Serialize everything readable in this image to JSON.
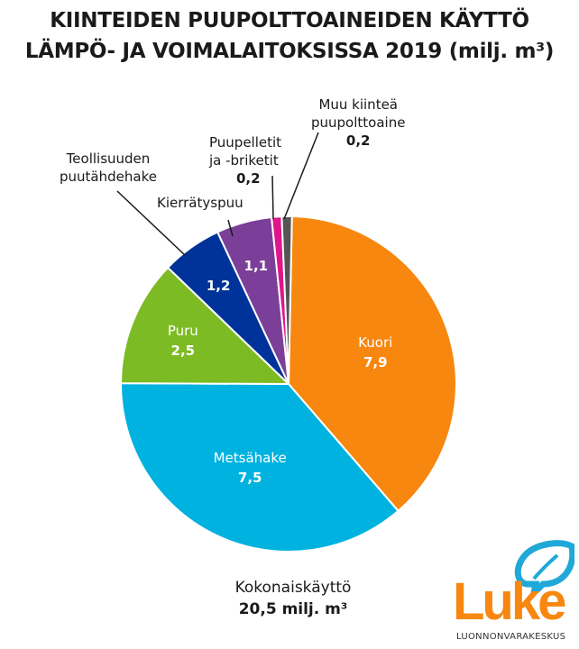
{
  "chart_data": {
    "type": "pie",
    "title_line1": "KIINTEIDEN PUUPOLTTOAINEIDEN KÄYTTÖ",
    "title_line2": "LÄMPÖ- JA VOIMALAITOKSISSA 2019 (milj. m³)",
    "slices": [
      {
        "label": "Kuori",
        "value": 7.9,
        "value_text": "7,9",
        "color": "#f7870f"
      },
      {
        "label": "Metsähake",
        "value": 7.5,
        "value_text": "7,5",
        "color": "#00b2e0"
      },
      {
        "label": "Puru",
        "value": 2.5,
        "value_text": "2,5",
        "color": "#7dbb24"
      },
      {
        "label": "Teollisuuden puutähdehake",
        "value": 1.2,
        "value_text": "1,2",
        "color": "#003399"
      },
      {
        "label": "Kierrätyspuu",
        "value": 1.1,
        "value_text": "1,1",
        "color": "#7b3f99"
      },
      {
        "label_line1": "Puupelletit",
        "label_line2": "ja -briketit",
        "value": 0.2,
        "value_text": "0,2",
        "color": "#e0158a"
      },
      {
        "label_line1": "Muu kiinteä",
        "label_line2": "puupolttoaine",
        "value": 0.2,
        "value_text": "0,2",
        "color": "#555555"
      }
    ],
    "teoll_line1": "Teollisuuden",
    "teoll_line2": "puutähdehake",
    "total_label": "Kokonaiskäyttö",
    "total_value": "20,5 milj. m³"
  },
  "logo": {
    "name": "Luke",
    "subtitle": "LUONNONVARAKESKUS"
  }
}
